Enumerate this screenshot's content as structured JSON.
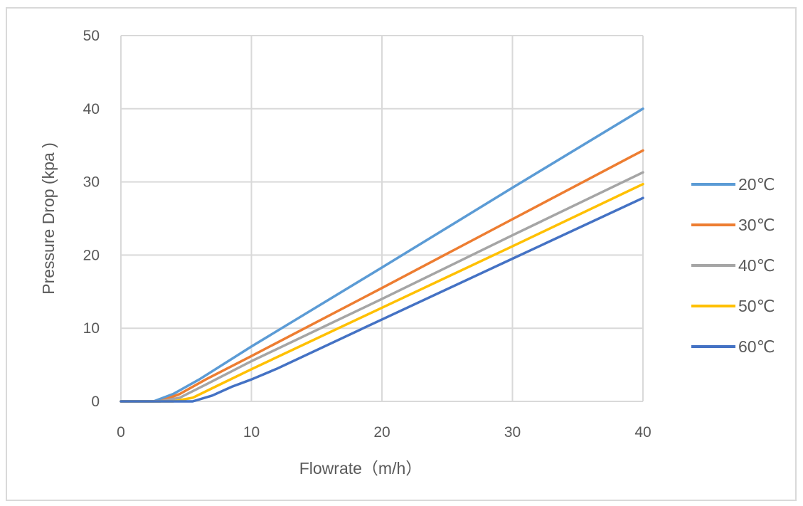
{
  "chart_data": {
    "type": "line",
    "title": "",
    "xlabel": "Flowrate（m/h）",
    "ylabel": "Pressure Drop (kpa )",
    "xlim": [
      0,
      40
    ],
    "ylim": [
      0,
      50
    ],
    "x_ticks": [
      0,
      10,
      20,
      30,
      40
    ],
    "y_ticks": [
      0,
      10,
      20,
      30,
      40,
      50
    ],
    "grid": true,
    "legend_position": "right",
    "series": [
      {
        "name": "20℃",
        "color": "#5b9bd5",
        "x": [
          0,
          2.5,
          4,
          6,
          10,
          20,
          30,
          40
        ],
        "y": [
          0,
          0,
          1,
          3,
          7.5,
          18.3,
          29.2,
          40
        ]
      },
      {
        "name": "30℃",
        "color": "#ed7d31",
        "x": [
          0,
          3,
          4.5,
          6.5,
          10,
          20,
          30,
          40
        ],
        "y": [
          0,
          0,
          1,
          3,
          6.2,
          15.5,
          24.9,
          34.3
        ]
      },
      {
        "name": "40℃",
        "color": "#a5a5a5",
        "x": [
          0,
          3,
          4.5,
          6.5,
          10,
          20,
          30,
          40
        ],
        "y": [
          0,
          0,
          0.5,
          2.3,
          5.5,
          14,
          22.7,
          31.3
        ]
      },
      {
        "name": "50℃",
        "color": "#ffc000",
        "x": [
          0,
          4,
          5.5,
          7,
          10,
          20,
          30,
          40
        ],
        "y": [
          0,
          0,
          0.5,
          1.8,
          4.4,
          12.8,
          21.2,
          29.7
        ]
      },
      {
        "name": "60℃",
        "color": "#4472c4",
        "x": [
          0,
          5.5,
          7,
          8.5,
          10,
          12,
          20,
          30,
          40
        ],
        "y": [
          0,
          0,
          0.8,
          2,
          3,
          4.5,
          11.2,
          19.5,
          27.8
        ]
      }
    ]
  }
}
